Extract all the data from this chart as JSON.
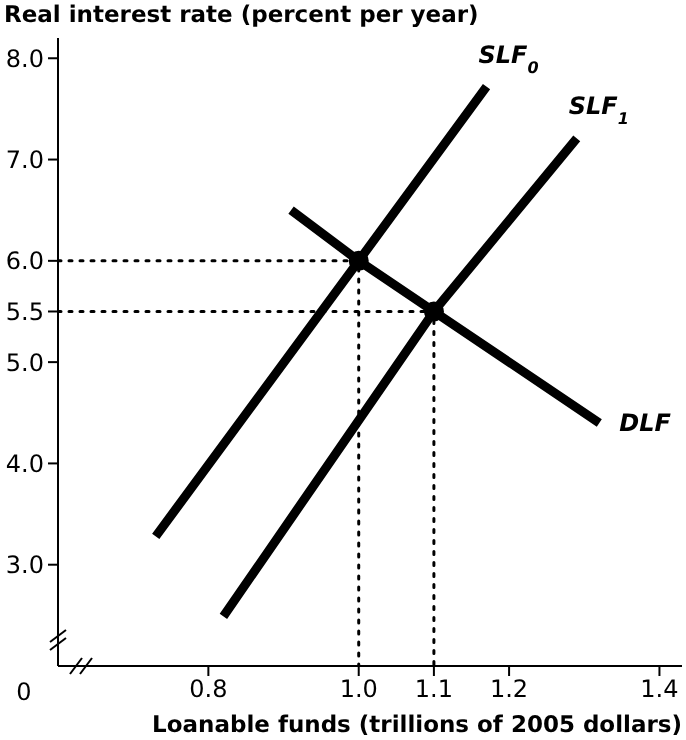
{
  "chart_data": {
    "type": "line",
    "ylabel": "Real interest rate (percent per year)",
    "xlabel": "Loanable funds (trillions of 2005 dollars)",
    "xlim": [
      0.6,
      1.43
    ],
    "ylim": [
      2,
      8.2
    ],
    "annotations": [
      "0"
    ],
    "xticks": [
      0.8,
      {
        "value": 1.0,
        "label": "1.0"
      },
      1.1,
      1.2,
      1.4
    ],
    "yticks": [
      {
        "value": 3,
        "label": "3.0"
      },
      {
        "value": 4,
        "label": "4.0"
      },
      {
        "value": 5,
        "label": "5.0"
      },
      5.5,
      {
        "value": 6,
        "label": "6.0"
      },
      {
        "value": 7,
        "label": "7.0"
      },
      {
        "value": 8,
        "label": "8.0"
      }
    ],
    "series": [
      {
        "name": "SLF$_{0}$",
        "color": "#000000",
        "x": [
          0.73,
          1.0,
          1.17
        ],
        "values": [
          3.28,
          6.0,
          7.72
        ]
      },
      {
        "name": "SLF$_{1}$",
        "color": "#000000",
        "x": [
          0.82,
          1.1,
          1.29
        ],
        "values": [
          2.49,
          5.5,
          7.21
        ]
      },
      {
        "name": "DLF",
        "color": "#000000",
        "x": [
          0.91,
          1.0,
          1.1,
          1.32
        ],
        "values": [
          6.5,
          6.0,
          5.5,
          4.4
        ]
      },
      {
        "color": "#000000",
        "line_style": "dotted",
        "x": [
          0.6,
          1.0,
          1.0
        ],
        "values": [
          6.0,
          6.0,
          2.0
        ]
      },
      {
        "color": "#000000",
        "line_style": "dotted",
        "x": [
          0.6,
          1.1,
          1.1
        ],
        "values": [
          5.5,
          5.5,
          2.0
        ]
      },
      {
        "type": "scatter",
        "marker": "circle",
        "color": "#000000",
        "x": [
          1.0,
          1.1
        ],
        "values": [
          6.0,
          5.5
        ]
      }
    ]
  }
}
